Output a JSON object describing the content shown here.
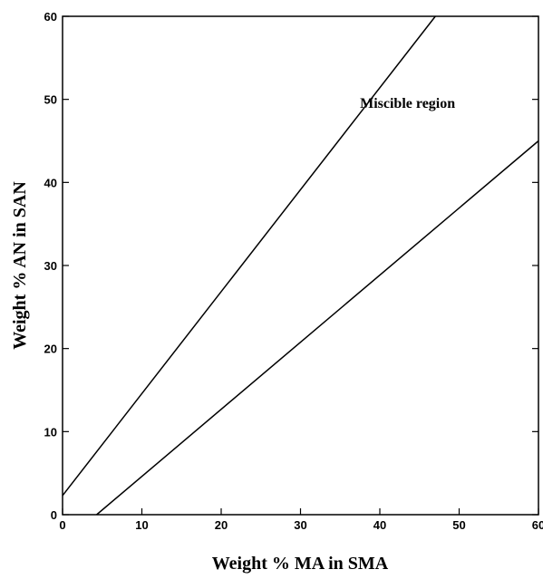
{
  "chart_data": {
    "type": "line",
    "xlabel": "Weight % MA in SMA",
    "ylabel": "Weight % AN in SAN",
    "xlim": [
      0,
      60
    ],
    "ylim": [
      0,
      60
    ],
    "xticks": [
      0,
      10,
      20,
      30,
      40,
      50,
      60
    ],
    "yticks": [
      0,
      10,
      20,
      30,
      40,
      50,
      60
    ],
    "grid": false,
    "series": [
      {
        "x": [
          0,
          47
        ],
        "y": [
          2.3,
          60
        ]
      },
      {
        "x": [
          4.3,
          60
        ],
        "y": [
          0,
          45
        ]
      }
    ],
    "annotations": [
      {
        "text": "Miscible region",
        "x": 43.5,
        "y": 49
      }
    ]
  }
}
